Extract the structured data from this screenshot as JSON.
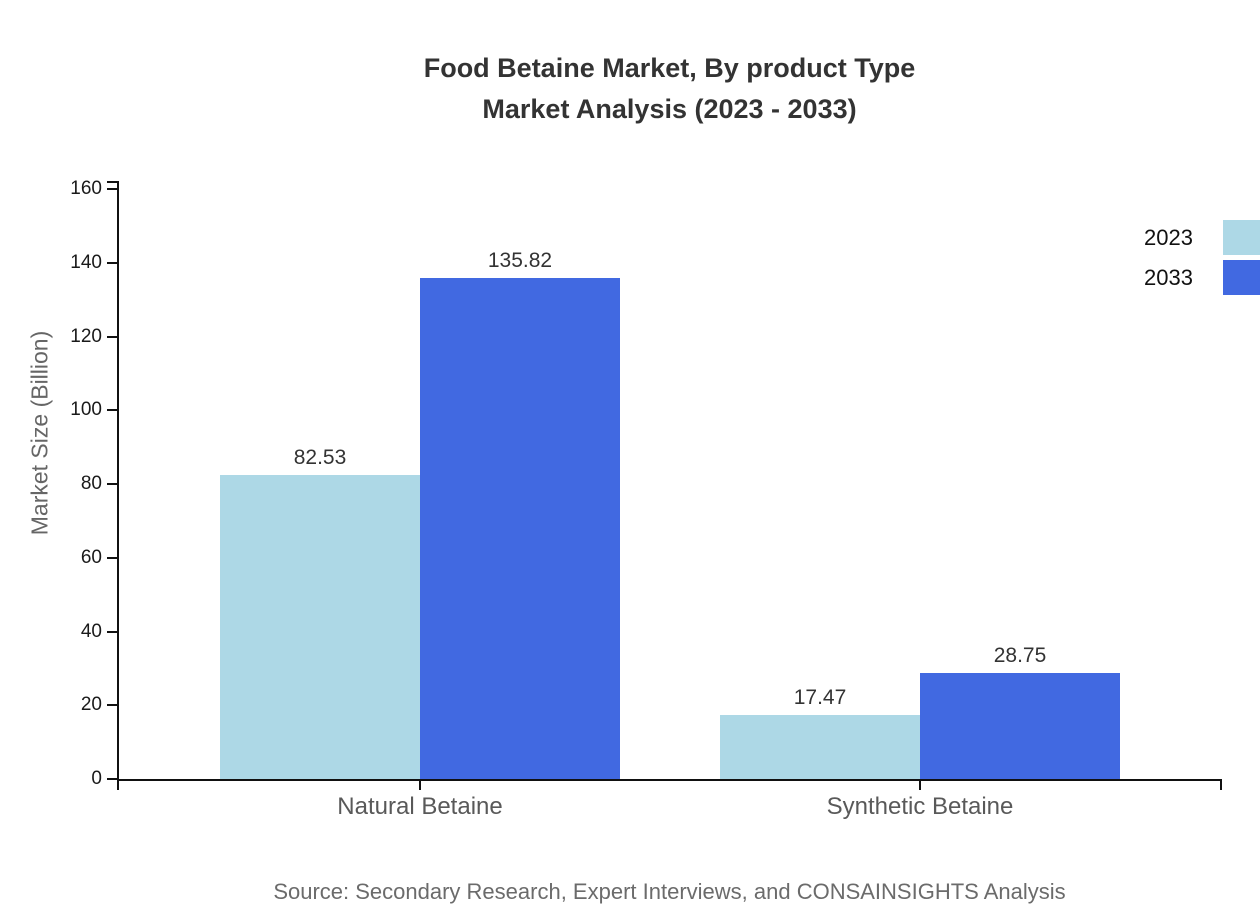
{
  "chart_data": {
    "type": "bar",
    "title_line1": "Food Betaine Market, By product Type",
    "title_line2": "Market Analysis (2023 - 2033)",
    "categories": [
      "Natural Betaine",
      "Synthetic Betaine"
    ],
    "series": [
      {
        "name": "2023",
        "color": "#ADD8E6",
        "values": [
          82.53,
          17.47
        ]
      },
      {
        "name": "2033",
        "color": "#4169E1",
        "values": [
          135.82,
          28.75
        ]
      }
    ],
    "xlabel": "",
    "ylabel": "Market Size (Billion)",
    "ylim": [
      0,
      160
    ],
    "yticks": [
      0,
      20,
      40,
      60,
      80,
      100,
      120,
      140,
      160
    ],
    "grid": false,
    "value_labels": true,
    "legend_position": "right-outside"
  },
  "footer": {
    "source": "Source: Secondary Research, Expert Interviews, and CONSAINSIGHTS Analysis"
  },
  "colors": {
    "background": "#ffffff",
    "axis": "#111111",
    "title_text": "#333333",
    "axis_label_text": "#666666",
    "tick_label_text": "#1a1a1a",
    "category_label_text": "#595959",
    "value_label_text": "#333333",
    "source_text": "#6b6b6b",
    "series_2023": "#ADD8E6",
    "series_2033": "#4169E1"
  }
}
